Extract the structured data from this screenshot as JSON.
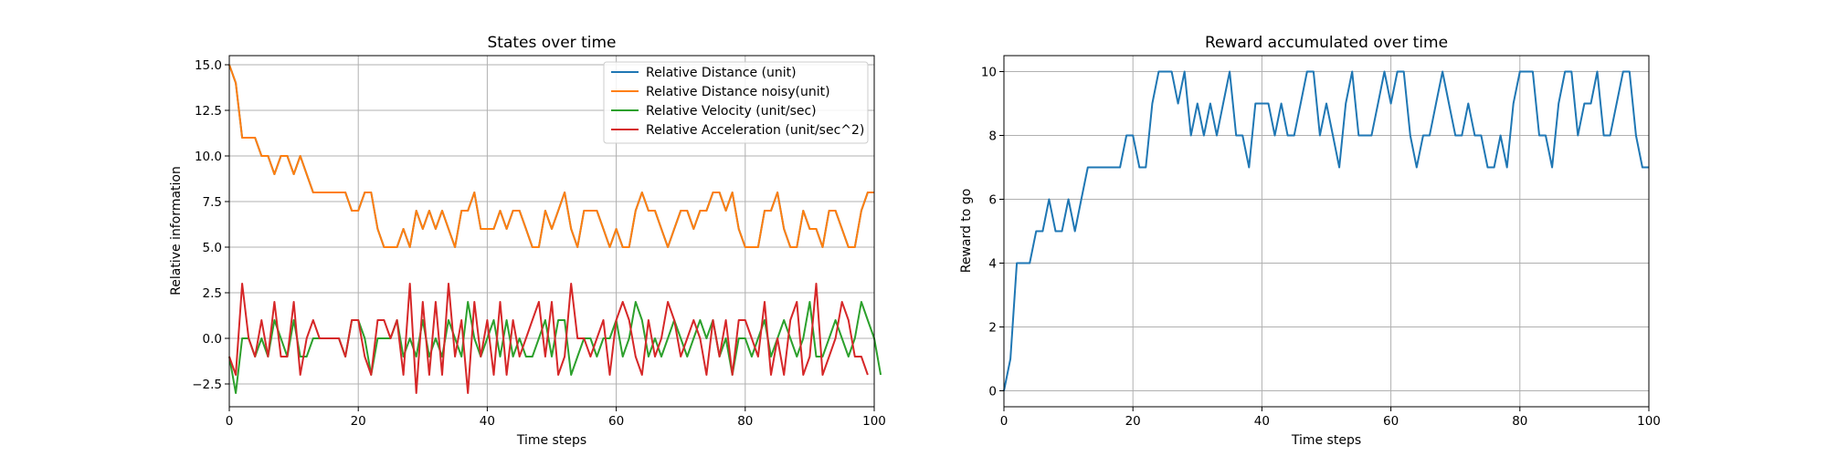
{
  "chart_data": [
    {
      "type": "line",
      "title": "States over time",
      "xlabel": "Time steps",
      "ylabel": "Relative information",
      "xlim": [
        0,
        100
      ],
      "ylim": [
        -3.75,
        15.5
      ],
      "xticks": [
        0,
        20,
        40,
        60,
        80,
        100
      ],
      "yticks": [
        -2.5,
        0.0,
        2.5,
        5.0,
        7.5,
        10.0,
        12.5,
        15.0
      ],
      "xtick_labels": [
        "0",
        "20",
        "40",
        "60",
        "80",
        "100"
      ],
      "ytick_labels": [
        "−2.5",
        "0.0",
        "2.5",
        "5.0",
        "7.5",
        "10.0",
        "12.5",
        "15.0"
      ],
      "grid": true,
      "legend_position": "upper right",
      "series": [
        {
          "name": "Relative Distance (unit)",
          "color": "#1f77b4",
          "values": [
            15,
            14,
            11,
            11,
            11,
            10,
            10,
            9,
            10,
            10,
            9,
            10,
            9,
            8,
            8,
            8,
            8,
            8,
            8,
            7,
            7,
            8,
            8,
            6,
            5,
            5,
            5,
            6,
            5,
            7,
            6,
            7,
            6,
            7,
            6,
            5,
            7,
            7,
            8,
            6,
            6,
            6,
            7,
            6,
            7,
            7,
            6,
            5,
            5,
            7,
            6,
            7,
            8,
            6,
            5,
            7,
            7,
            7,
            6,
            5,
            6,
            5,
            5,
            7,
            8,
            7,
            7,
            6,
            5,
            6,
            7,
            7,
            6,
            7,
            7,
            8,
            8,
            7,
            8,
            6,
            5,
            5,
            5,
            7,
            7,
            8,
            6,
            5,
            5,
            7,
            6,
            6,
            5,
            7,
            7,
            6,
            5,
            5,
            7,
            8,
            8
          ]
        },
        {
          "name": "Relative Distance noisy(unit)",
          "color": "#ff7f0e",
          "values": [
            15,
            14,
            11,
            11,
            11,
            10,
            10,
            9,
            10,
            10,
            9,
            10,
            9,
            8,
            8,
            8,
            8,
            8,
            8,
            7,
            7,
            8,
            8,
            6,
            5,
            5,
            5,
            6,
            5,
            7,
            6,
            7,
            6,
            7,
            6,
            5,
            7,
            7,
            8,
            6,
            6,
            6,
            7,
            6,
            7,
            7,
            6,
            5,
            5,
            7,
            6,
            7,
            8,
            6,
            5,
            7,
            7,
            7,
            6,
            5,
            6,
            5,
            5,
            7,
            8,
            7,
            7,
            6,
            5,
            6,
            7,
            7,
            6,
            7,
            7,
            8,
            8,
            7,
            8,
            6,
            5,
            5,
            5,
            7,
            7,
            8,
            6,
            5,
            5,
            7,
            6,
            6,
            5,
            7,
            7,
            6,
            5,
            5,
            7,
            8,
            8
          ]
        },
        {
          "name": "Relative Velocity (unit/sec)",
          "color": "#2ca02c",
          "values": [
            -1,
            -3,
            0,
            0,
            -1,
            0,
            -1,
            1,
            0,
            -1,
            1,
            -1,
            -1,
            0,
            0,
            0,
            0,
            0,
            -1,
            1,
            1,
            0,
            -2,
            0,
            0,
            0,
            1,
            -1,
            0,
            -1,
            1,
            -1,
            0,
            -1,
            1,
            0,
            -1,
            2,
            0,
            -1,
            0,
            1,
            -1,
            1,
            -1,
            0,
            -1,
            -1,
            0,
            1,
            -1,
            1,
            1,
            -2,
            -1,
            0,
            0,
            -1,
            0,
            0,
            1,
            -1,
            0,
            2,
            1,
            -1,
            0,
            -1,
            0,
            1,
            0,
            -1,
            0,
            1,
            0,
            1,
            -1,
            0,
            -2,
            0,
            0,
            -1,
            0,
            1,
            -1,
            0,
            1,
            0,
            -1,
            0,
            2,
            -1,
            -1,
            0,
            1,
            0,
            -1,
            0,
            2,
            1,
            0,
            -2
          ]
        },
        {
          "name": "Relative Acceleration (unit/sec^2)",
          "color": "#d62728",
          "values": [
            -1,
            -2,
            3,
            0,
            -1,
            1,
            -1,
            2,
            -1,
            -1,
            2,
            -2,
            0,
            1,
            0,
            0,
            0,
            0,
            -1,
            1,
            1,
            -1,
            -2,
            1,
            1,
            0,
            1,
            -2,
            3,
            -3,
            2,
            -2,
            2,
            -2,
            3,
            -1,
            1,
            -3,
            2,
            -1,
            1,
            -2,
            2,
            -2,
            1,
            -1,
            0,
            1,
            2,
            -1,
            2,
            -2,
            -1,
            3,
            0,
            0,
            -1,
            0,
            1,
            -2,
            1,
            2,
            1,
            -1,
            -2,
            1,
            -1,
            0,
            2,
            1,
            -1,
            0,
            1,
            0,
            -2,
            1,
            -1,
            1,
            -2,
            1,
            1,
            0,
            -1,
            2,
            -2,
            0,
            -2,
            1,
            2,
            -2,
            -1,
            3,
            -2,
            -1,
            0,
            2,
            1,
            -1,
            -1,
            -2
          ]
        }
      ]
    },
    {
      "type": "line",
      "title": "Reward accumulated over time",
      "xlabel": "Time steps",
      "ylabel": "Reward to go",
      "xlim": [
        0,
        100
      ],
      "ylim": [
        -0.5,
        10.5
      ],
      "xticks": [
        0,
        20,
        40,
        60,
        80,
        100
      ],
      "yticks": [
        0,
        2,
        4,
        6,
        8,
        10
      ],
      "xtick_labels": [
        "0",
        "20",
        "40",
        "60",
        "80",
        "100"
      ],
      "ytick_labels": [
        "0",
        "2",
        "4",
        "6",
        "8",
        "10"
      ],
      "grid": true,
      "series": [
        {
          "color": "#1f77b4",
          "values": [
            0,
            1,
            4,
            4,
            4,
            5,
            5,
            6,
            5,
            5,
            6,
            5,
            6,
            7,
            7,
            7,
            7,
            7,
            7,
            8,
            8,
            7,
            7,
            9,
            10,
            10,
            10,
            9,
            10,
            8,
            9,
            8,
            9,
            8,
            9,
            10,
            8,
            8,
            7,
            9,
            9,
            9,
            8,
            9,
            8,
            8,
            9,
            10,
            10,
            8,
            9,
            8,
            7,
            9,
            10,
            8,
            8,
            8,
            9,
            10,
            9,
            10,
            10,
            8,
            7,
            8,
            8,
            9,
            10,
            9,
            8,
            8,
            9,
            8,
            8,
            7,
            7,
            8,
            7,
            9,
            10,
            10,
            10,
            8,
            8,
            7,
            9,
            10,
            10,
            8,
            9,
            9,
            10,
            8,
            8,
            9,
            10,
            10,
            8,
            7,
            7
          ]
        }
      ]
    }
  ]
}
